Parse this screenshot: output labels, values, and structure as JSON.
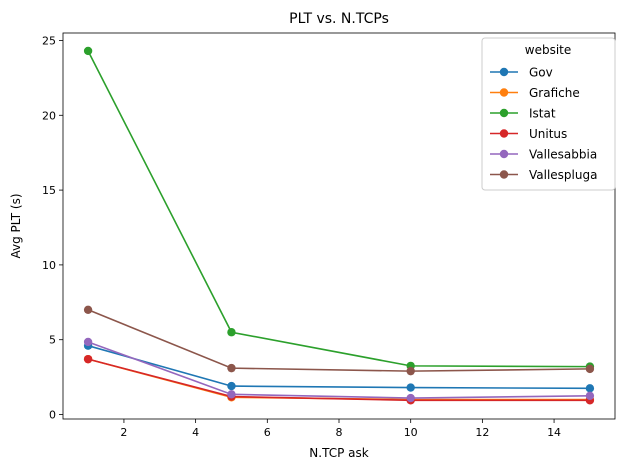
{
  "chart_data": {
    "type": "line",
    "title": "PLT vs. N.TCPs",
    "xlabel": "N.TCP ask",
    "ylabel": "Avg PLT (s)",
    "xlim": [
      0.3,
      15.7
    ],
    "ylim": [
      -0.3,
      25.5
    ],
    "xticks": [
      2,
      4,
      6,
      8,
      10,
      12,
      14
    ],
    "yticks": [
      0,
      5,
      10,
      15,
      20,
      25
    ],
    "grid": false,
    "legend_title": "website",
    "legend_position": "upper right",
    "x": [
      1,
      5,
      10,
      15
    ],
    "series": [
      {
        "name": "Gov",
        "color": "#1f77b4",
        "values": [
          4.6,
          1.9,
          1.8,
          1.75
        ]
      },
      {
        "name": "Grafiche",
        "color": "#ff7f0e",
        "values": [
          3.7,
          1.15,
          1.0,
          1.0
        ]
      },
      {
        "name": "Istat",
        "color": "#2ca02c",
        "values": [
          24.3,
          5.5,
          3.25,
          3.2
        ]
      },
      {
        "name": "Unitus",
        "color": "#d62728",
        "values": [
          3.7,
          1.2,
          0.95,
          0.95
        ]
      },
      {
        "name": "Vallesabbia",
        "color": "#9467bd",
        "values": [
          4.85,
          1.35,
          1.1,
          1.25
        ]
      },
      {
        "name": "Vallespluga",
        "color": "#8c564b",
        "values": [
          7.0,
          3.1,
          2.9,
          3.05
        ]
      }
    ]
  }
}
